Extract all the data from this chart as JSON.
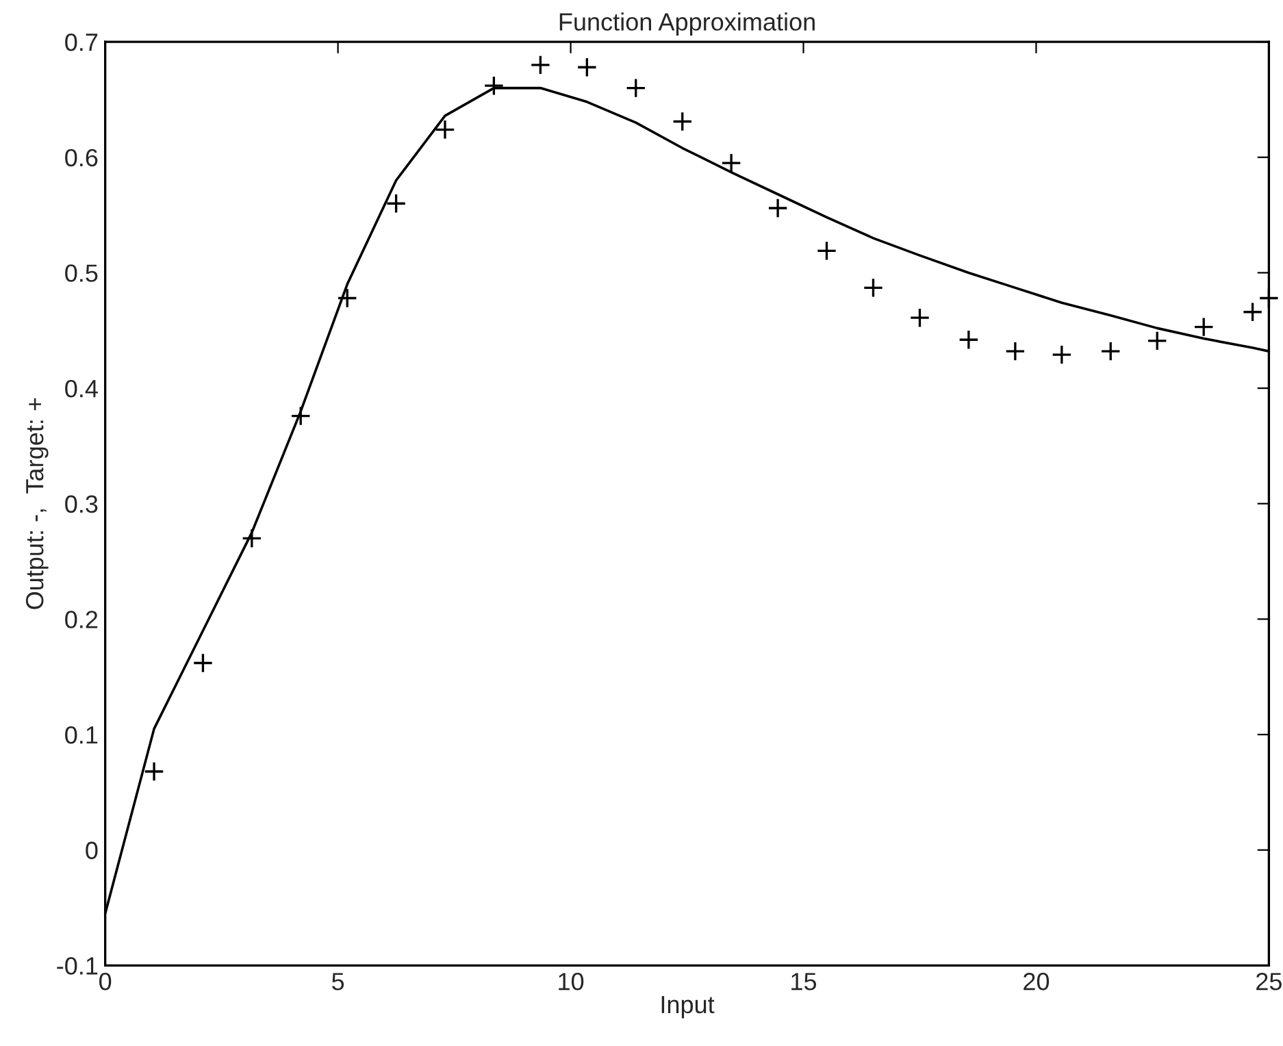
{
  "chart_data": {
    "type": "line",
    "title": "Function Approximation",
    "xlabel": "Input",
    "ylabel": "Output: -,  Target: +",
    "xlim": [
      0,
      25
    ],
    "xticks": [
      0,
      5,
      10,
      15,
      20,
      25
    ],
    "ylim": [
      -0.1,
      0.7
    ],
    "yticks": [
      -0.1,
      0,
      0.1,
      0.2,
      0.3,
      0.4,
      0.5,
      0.6,
      0.7
    ],
    "grid": false,
    "legend": false,
    "series": [
      {
        "color": "#000000",
        "line_style": "solid",
        "marker": "none",
        "x": [
          0,
          1.05,
          2.1,
          3.15,
          4.2,
          5.2,
          6.25,
          7.3,
          8.35,
          9.35,
          10.35,
          11.4,
          12.4,
          13.45,
          14.45,
          15.5,
          16.5,
          17.5,
          18.55,
          19.55,
          20.55,
          21.6,
          22.6,
          23.6,
          24.65,
          25
        ],
        "values": [
          -0.055,
          0.105,
          0.19,
          0.275,
          0.38,
          0.49,
          0.58,
          0.636,
          0.66,
          0.66,
          0.648,
          0.63,
          0.608,
          0.587,
          0.568,
          0.548,
          0.53,
          0.515,
          0.5,
          0.487,
          0.474,
          0.463,
          0.452,
          0.443,
          0.435,
          0.432
        ]
      },
      {
        "type": "scatter",
        "color": "#000000",
        "marker": "cross",
        "x": [
          1.05,
          2.1,
          3.15,
          4.2,
          5.2,
          6.25,
          7.3,
          8.35,
          9.35,
          10.35,
          11.4,
          12.4,
          13.45,
          14.45,
          15.5,
          16.5,
          17.5,
          18.55,
          19.55,
          20.55,
          21.6,
          22.6,
          23.6,
          24.65,
          25
        ],
        "values": [
          0.068,
          0.162,
          0.27,
          0.376,
          0.478,
          0.56,
          0.624,
          0.662,
          0.68,
          0.678,
          0.66,
          0.631,
          0.595,
          0.556,
          0.519,
          0.487,
          0.461,
          0.442,
          0.432,
          0.429,
          0.432,
          0.441,
          0.453,
          0.466,
          0.478
        ]
      }
    ]
  }
}
